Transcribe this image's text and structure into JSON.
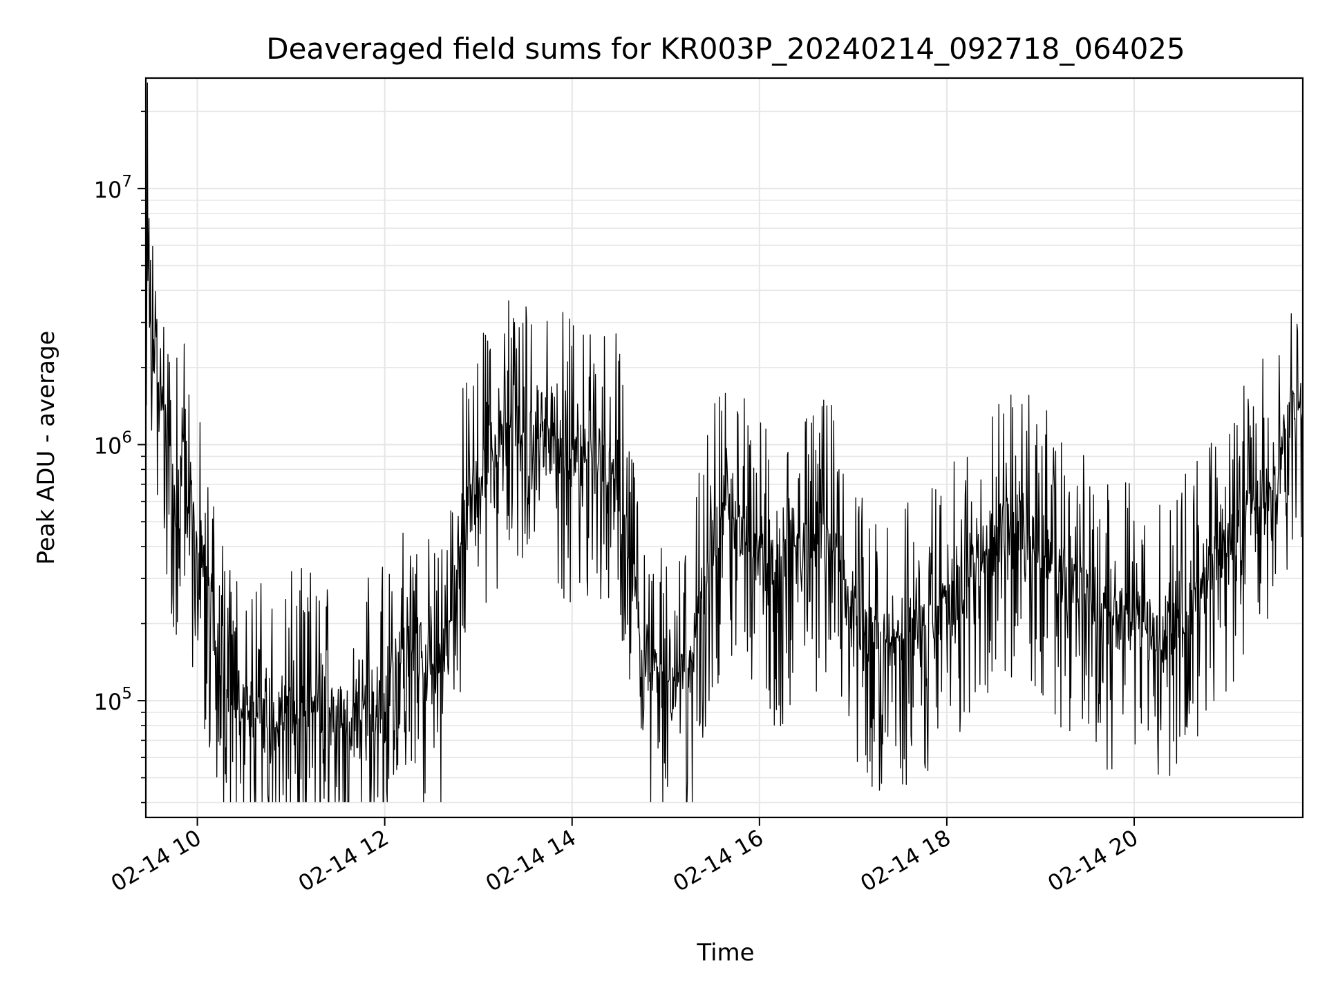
{
  "chart_data": {
    "type": "line",
    "title": "Deaveraged field sums for KR003P_20240214_092718_064025",
    "xlabel": "Time",
    "ylabel": "Peak ADU - average",
    "x_ticks": [
      "02-14 10",
      "02-14 12",
      "02-14 14",
      "02-14 16",
      "02-14 18",
      "02-14 20"
    ],
    "y_ticks": [
      {
        "base": "10",
        "exp": "5",
        "value": 100000
      },
      {
        "base": "10",
        "exp": "6",
        "value": 1000000
      },
      {
        "base": "10",
        "exp": "7",
        "value": 10000000
      }
    ],
    "xlim": [
      "2024-02-14 09:27",
      "2024-02-14 21:48"
    ],
    "ylim": [
      35000,
      27000000
    ],
    "yscale": "log",
    "grid": true,
    "line_color": "#000000",
    "grid_color": "#e6e6e6",
    "series": [
      {
        "x": [
          "2024-02-14 09:27",
          "2024-02-14 09:28",
          "2024-02-14 09:30",
          "2024-02-14 09:33",
          "2024-02-14 09:36",
          "2024-02-14 09:39",
          "2024-02-14 09:42",
          "2024-02-14 09:46",
          "2024-02-14 09:50",
          "2024-02-14 09:55",
          "2024-02-14 10:00",
          "2024-02-14 10:05",
          "2024-02-14 10:12",
          "2024-02-14 10:20",
          "2024-02-14 10:30",
          "2024-02-14 10:40",
          "2024-02-14 10:50",
          "2024-02-14 11:00",
          "2024-02-14 11:10",
          "2024-02-14 11:20",
          "2024-02-14 11:30",
          "2024-02-14 11:40",
          "2024-02-14 11:50",
          "2024-02-14 12:00",
          "2024-02-14 12:10",
          "2024-02-14 12:20",
          "2024-02-14 12:30",
          "2024-02-14 12:40",
          "2024-02-14 12:50",
          "2024-02-14 13:00",
          "2024-02-14 13:10",
          "2024-02-14 13:20",
          "2024-02-14 13:30",
          "2024-02-14 13:45",
          "2024-02-14 14:00",
          "2024-02-14 14:15",
          "2024-02-14 14:30",
          "2024-02-14 14:45",
          "2024-02-14 15:00",
          "2024-02-14 15:15",
          "2024-02-14 15:30",
          "2024-02-14 15:45",
          "2024-02-14 16:00",
          "2024-02-14 16:15",
          "2024-02-14 16:30",
          "2024-02-14 16:45",
          "2024-02-14 17:00",
          "2024-02-14 17:15",
          "2024-02-14 17:30",
          "2024-02-14 17:45",
          "2024-02-14 18:00",
          "2024-02-14 18:15",
          "2024-02-14 18:30",
          "2024-02-14 18:45",
          "2024-02-14 19:00",
          "2024-02-14 19:15",
          "2024-02-14 19:30",
          "2024-02-14 19:45",
          "2024-02-14 20:00",
          "2024-02-14 20:15",
          "2024-02-14 20:30",
          "2024-02-14 20:45",
          "2024-02-14 21:00",
          "2024-02-14 21:15",
          "2024-02-14 21:30",
          "2024-02-14 21:40",
          "2024-02-14 21:48"
        ],
        "values": [
          2900000,
          21000000,
          1800000,
          2200000,
          1900000,
          1500000,
          900000,
          500000,
          1300000,
          600000,
          420000,
          300000,
          180000,
          120000,
          100000,
          85000,
          80000,
          90000,
          100000,
          95000,
          90000,
          85000,
          90000,
          100000,
          150000,
          180000,
          120000,
          150000,
          500000,
          700000,
          1000000,
          1200000,
          1100000,
          1000000,
          900000,
          950000,
          800000,
          150000,
          110000,
          130000,
          450000,
          520000,
          350000,
          300000,
          400000,
          450000,
          200000,
          170000,
          180000,
          200000,
          220000,
          300000,
          450000,
          500000,
          420000,
          300000,
          250000,
          200000,
          220000,
          180000,
          220000,
          280000,
          450000,
          550000,
          700000,
          1200000,
          1500000
        ]
      }
    ]
  }
}
